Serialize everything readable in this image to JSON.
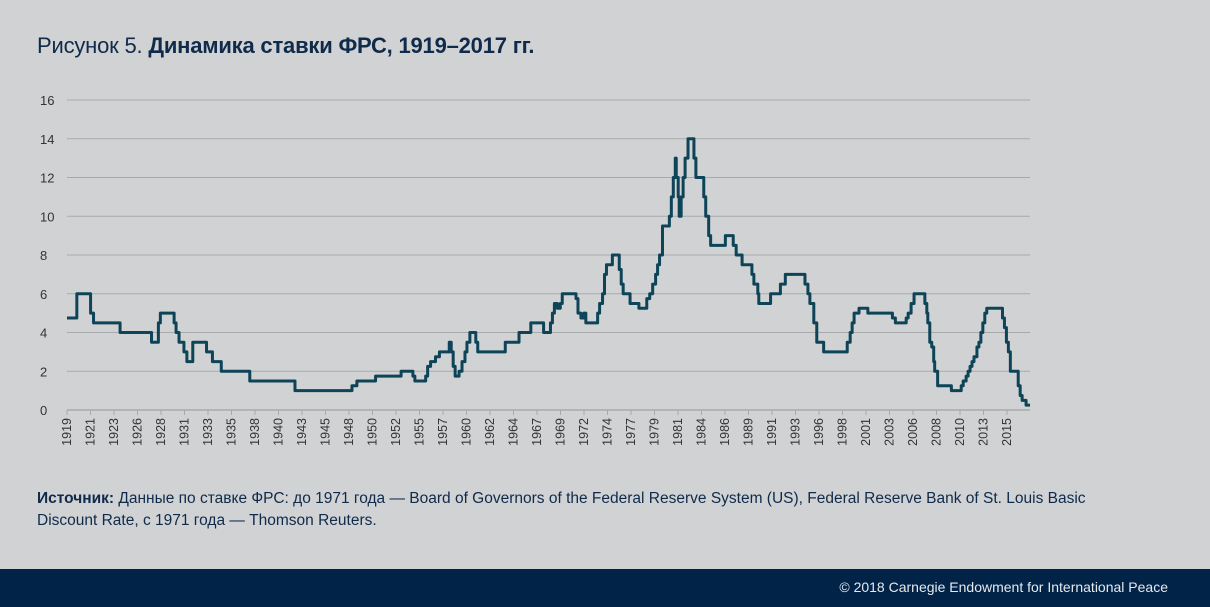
{
  "title": {
    "prefix": "Рисунок 5.",
    "main": "Динамика ставки ФРС, 1919–2017 гг."
  },
  "source": {
    "label": "Источник:",
    "text": "Данные по ставке ФРС: до 1971 года — Board of Governors of the Federal Reserve System (US), Federal Reserve Bank of St. Louis Basic Discount Rate, с 1971 года — Thomson Reuters."
  },
  "footer": {
    "copyright": "© 2018 Carnegie Endowment for International Peace"
  },
  "colors": {
    "line": "#0e4458",
    "grid": "#a8a9ab",
    "background": "#d1d2d4",
    "footer": "#002347",
    "title": "#0f2a4a"
  },
  "chart_data": {
    "type": "line",
    "title": "Динамика ставки ФРС, 1919–2017 гг.",
    "xlabel": "",
    "ylabel": "",
    "xlim": [
      1919,
      2017
    ],
    "ylim": [
      0,
      16
    ],
    "grid": "horizontal",
    "legend": "none",
    "yticks": [
      0,
      2,
      4,
      6,
      8,
      10,
      12,
      14,
      16
    ],
    "xticks": [
      "1919",
      "1921",
      "1923",
      "1926",
      "1928",
      "1931",
      "1933",
      "1935",
      "1938",
      "1940",
      "1943",
      "1945",
      "1948",
      "1950",
      "1952",
      "1955",
      "1957",
      "1960",
      "1962",
      "1964",
      "1967",
      "1969",
      "1972",
      "1974",
      "1977",
      "1979",
      "1981",
      "1984",
      "1986",
      "1989",
      "1991",
      "1993",
      "1996",
      "1998",
      "2001",
      "2003",
      "2006",
      "2008",
      "2010",
      "2013",
      "2015"
    ],
    "series": [
      {
        "name": "Ставка ФРС",
        "step": true,
        "points": [
          [
            1919.0,
            4.75
          ],
          [
            1920.0,
            6.0
          ],
          [
            1921.4,
            5.0
          ],
          [
            1921.7,
            4.5
          ],
          [
            1924.4,
            4.0
          ],
          [
            1927.6,
            3.5
          ],
          [
            1928.3,
            4.5
          ],
          [
            1928.5,
            5.0
          ],
          [
            1929.9,
            4.5
          ],
          [
            1930.1,
            4.0
          ],
          [
            1930.4,
            3.5
          ],
          [
            1930.9,
            3.0
          ],
          [
            1931.2,
            2.5
          ],
          [
            1931.8,
            3.5
          ],
          [
            1933.2,
            3.0
          ],
          [
            1933.8,
            2.5
          ],
          [
            1934.7,
            2.0
          ],
          [
            1937.6,
            1.5
          ],
          [
            1942.2,
            1.0
          ],
          [
            1948.0,
            1.25
          ],
          [
            1948.5,
            1.5
          ],
          [
            1950.4,
            1.75
          ],
          [
            1953.0,
            2.0
          ],
          [
            1954.2,
            1.75
          ],
          [
            1954.4,
            1.5
          ],
          [
            1955.5,
            1.75
          ],
          [
            1955.7,
            2.25
          ],
          [
            1956.0,
            2.5
          ],
          [
            1956.5,
            2.75
          ],
          [
            1956.9,
            3.0
          ],
          [
            1957.9,
            3.5
          ],
          [
            1958.1,
            3.0
          ],
          [
            1958.3,
            2.25
          ],
          [
            1958.5,
            1.75
          ],
          [
            1958.9,
            2.0
          ],
          [
            1959.2,
            2.5
          ],
          [
            1959.5,
            3.0
          ],
          [
            1959.7,
            3.5
          ],
          [
            1960.0,
            4.0
          ],
          [
            1960.6,
            3.5
          ],
          [
            1960.8,
            3.0
          ],
          [
            1963.6,
            3.5
          ],
          [
            1965.0,
            4.0
          ],
          [
            1966.2,
            4.5
          ],
          [
            1967.5,
            4.0
          ],
          [
            1968.2,
            4.5
          ],
          [
            1968.4,
            5.0
          ],
          [
            1968.6,
            5.5
          ],
          [
            1968.9,
            5.25
          ],
          [
            1969.2,
            5.5
          ],
          [
            1969.4,
            6.0
          ],
          [
            1970.8,
            5.75
          ],
          [
            1971.0,
            5.0
          ],
          [
            1971.3,
            4.75
          ],
          [
            1971.6,
            5.0
          ],
          [
            1971.8,
            4.5
          ],
          [
            1973.0,
            5.0
          ],
          [
            1973.2,
            5.5
          ],
          [
            1973.5,
            6.0
          ],
          [
            1973.7,
            7.0
          ],
          [
            1973.9,
            7.5
          ],
          [
            1974.5,
            8.0
          ],
          [
            1975.2,
            7.25
          ],
          [
            1975.4,
            6.5
          ],
          [
            1975.6,
            6.0
          ],
          [
            1976.3,
            5.5
          ],
          [
            1977.2,
            5.25
          ],
          [
            1978.0,
            5.75
          ],
          [
            1978.3,
            6.0
          ],
          [
            1978.6,
            6.5
          ],
          [
            1978.9,
            7.0
          ],
          [
            1979.1,
            7.5
          ],
          [
            1979.3,
            8.0
          ],
          [
            1979.6,
            9.5
          ],
          [
            1980.3,
            10.0
          ],
          [
            1980.5,
            11.0
          ],
          [
            1980.7,
            12.0
          ],
          [
            1980.9,
            13.0
          ],
          [
            1981.0,
            12.0
          ],
          [
            1981.2,
            11.0
          ],
          [
            1981.3,
            10.0
          ],
          [
            1981.5,
            11.0
          ],
          [
            1981.7,
            12.0
          ],
          [
            1981.9,
            13.0
          ],
          [
            1982.2,
            14.0
          ],
          [
            1982.8,
            13.0
          ],
          [
            1983.0,
            12.0
          ],
          [
            1983.8,
            11.0
          ],
          [
            1984.0,
            10.0
          ],
          [
            1984.3,
            9.0
          ],
          [
            1984.5,
            8.5
          ],
          [
            1986.0,
            9.0
          ],
          [
            1986.8,
            8.5
          ],
          [
            1987.1,
            8.0
          ],
          [
            1987.7,
            7.5
          ],
          [
            1988.7,
            7.0
          ],
          [
            1988.9,
            6.5
          ],
          [
            1989.3,
            6.0
          ],
          [
            1989.4,
            5.5
          ],
          [
            1990.6,
            6.0
          ],
          [
            1991.6,
            6.5
          ],
          [
            1992.1,
            7.0
          ],
          [
            1994.1,
            6.5
          ],
          [
            1994.4,
            6.0
          ],
          [
            1994.6,
            5.5
          ],
          [
            1995.0,
            4.5
          ],
          [
            1995.3,
            3.5
          ],
          [
            1996.0,
            3.0
          ],
          [
            1998.4,
            3.5
          ],
          [
            1998.7,
            4.0
          ],
          [
            1998.9,
            4.5
          ],
          [
            1999.1,
            5.0
          ],
          [
            1999.6,
            5.25
          ],
          [
            2000.5,
            5.0
          ],
          [
            2003.0,
            4.75
          ],
          [
            2003.3,
            4.5
          ],
          [
            2004.4,
            4.75
          ],
          [
            2004.6,
            5.0
          ],
          [
            2004.9,
            5.5
          ],
          [
            2005.2,
            6.0
          ],
          [
            2006.3,
            5.5
          ],
          [
            2006.5,
            5.0
          ],
          [
            2006.6,
            4.5
          ],
          [
            2006.8,
            3.5
          ],
          [
            2007.0,
            3.25
          ],
          [
            2007.2,
            2.5
          ],
          [
            2007.3,
            2.0
          ],
          [
            2007.6,
            1.25
          ],
          [
            2009.0,
            1.0
          ],
          [
            2010.0,
            1.25
          ],
          [
            2010.2,
            1.5
          ],
          [
            2010.5,
            1.75
          ],
          [
            2010.7,
            2.0
          ],
          [
            2010.9,
            2.25
          ],
          [
            2011.1,
            2.5
          ],
          [
            2011.3,
            2.75
          ],
          [
            2011.6,
            3.25
          ],
          [
            2011.8,
            3.5
          ],
          [
            2012.0,
            4.0
          ],
          [
            2012.2,
            4.5
          ],
          [
            2012.4,
            5.0
          ],
          [
            2012.6,
            5.25
          ],
          [
            2014.2,
            4.75
          ],
          [
            2014.4,
            4.25
          ],
          [
            2014.6,
            3.5
          ],
          [
            2014.8,
            3.0
          ],
          [
            2015.0,
            2.0
          ],
          [
            2015.8,
            1.25
          ],
          [
            2016.0,
            0.75
          ],
          [
            2016.2,
            0.5
          ],
          [
            2016.6,
            0.25
          ],
          [
            2019.0,
            0.25
          ]
        ]
      }
    ]
  }
}
